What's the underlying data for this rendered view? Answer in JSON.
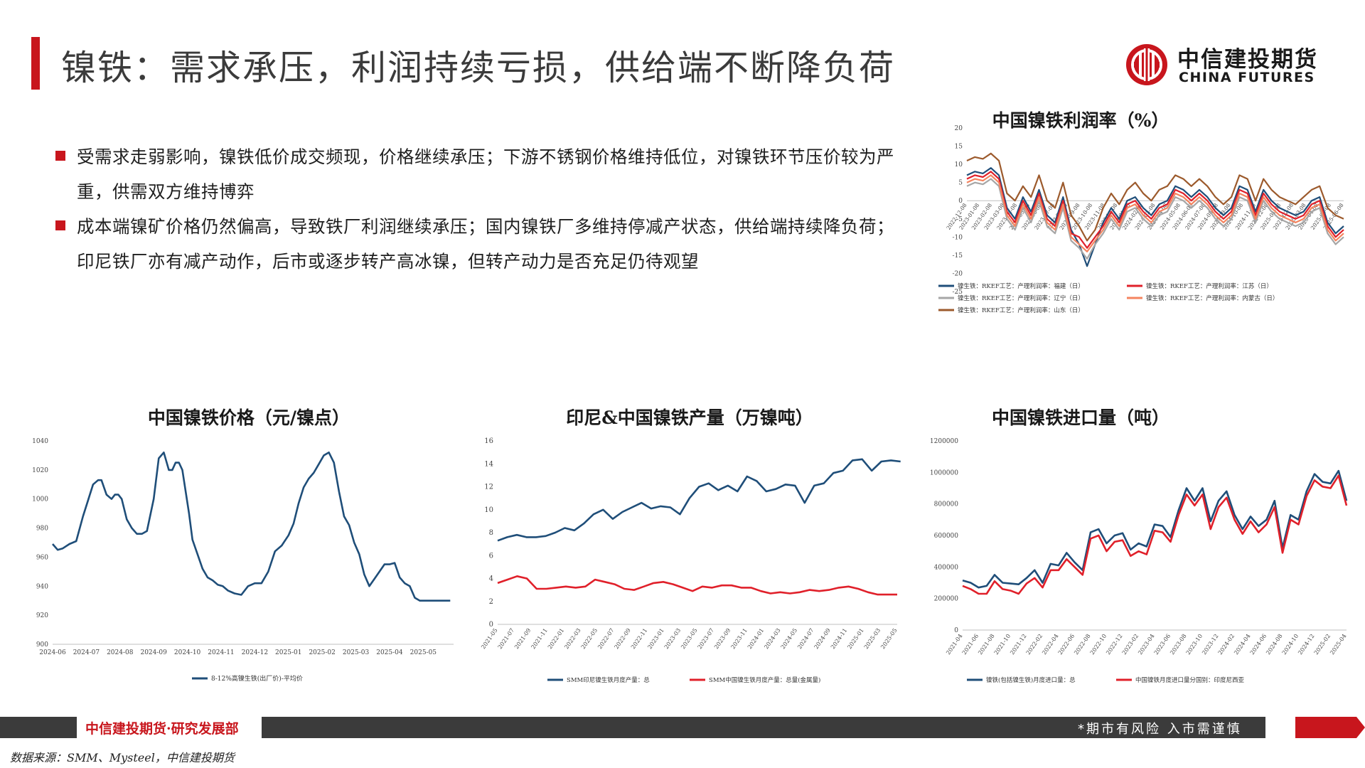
{
  "header": {
    "title": "镍铁：需求承压，利润持续亏损，供给端不断降负荷",
    "logo_cn": "中信建投期货",
    "logo_en": "CHINA FUTURES"
  },
  "bullets": [
    "受需求走弱影响，镍铁低价成交频现，价格继续承压；下游不锈钢价格维持低位，对镍铁环节压价较为严重，供需双方维持博弈",
    "成本端镍矿价格仍然偏高，导致铁厂利润继续承压；国内镍铁厂多维持停减产状态，供给端持续降负荷；印尼铁厂亦有减产动作，后市或逐步转产高冰镍，但转产动力是否充足仍待观望"
  ],
  "footer": {
    "org": "中信建投期货·研究发展部",
    "risk": "*期市有风险  入市需谨慎",
    "source": "数据来源：SMM、Mysteel，中信建投期货"
  },
  "colors": {
    "brand_red": "#c8161d",
    "navy": "#1f4e79",
    "red": "#e0202a",
    "gray": "#a6a6a6",
    "salmon": "#f4845f",
    "brown": "#9c5a2c",
    "dark": "#3b3b3b"
  },
  "chart_data": [
    {
      "id": "profit",
      "type": "line",
      "title": "中国镍铁利润率（%）",
      "ylim": [
        -25,
        20
      ],
      "yticks": [
        20,
        15,
        10,
        5,
        0,
        -5,
        -10,
        -15,
        -20,
        -25
      ],
      "x_ticks": [
        "2022-12-08",
        "2023-01-08",
        "2023-02-08",
        "2023-03-08",
        "2023-04-08",
        "2023-05-08",
        "2023-06-08",
        "2023-07-08",
        "2023-08-08",
        "2023-09-08",
        "2023-10-08",
        "2023-11-08",
        "2023-12-08",
        "2024-01-08",
        "2024-02-08",
        "2024-03-08",
        "2024-04-08",
        "2024-05-08",
        "2024-06-08",
        "2024-07-08",
        "2024-08-08",
        "2024-09-08",
        "2024-10-08",
        "2024-11-08",
        "2024-12-08",
        "2025-01-08",
        "2025-02-08",
        "2025-03-08",
        "2025-04-08",
        "2025-05-08",
        "2025-06-08"
      ],
      "series": [
        {
          "name": "镍生铁：RKEF工艺：产理利润率：福建（日）",
          "color": "#1f4e79",
          "values": [
            7,
            8,
            7.5,
            9,
            7,
            -2,
            -5,
            1,
            -3,
            3,
            -4,
            -6,
            1,
            -8,
            -12,
            -18,
            -12,
            -6,
            -2,
            -5,
            0,
            1,
            -2,
            -4,
            -1,
            0,
            4,
            3,
            1,
            3,
            1,
            -2,
            -4,
            -2,
            4,
            3,
            -3,
            3,
            0,
            -2,
            -3,
            -4,
            -3,
            0,
            1,
            -6,
            -9,
            -7
          ]
        },
        {
          "name": "镍生铁：RKEF工艺：产理利润率：江苏（日）",
          "color": "#e0202a",
          "values": [
            6,
            7,
            6.5,
            8,
            6,
            -3,
            -6,
            0,
            -4,
            2,
            -5,
            -7,
            0,
            -9,
            -10,
            -13,
            -10,
            -7,
            -3,
            -6,
            -1,
            0,
            -3,
            -5,
            -2,
            -1,
            3,
            2,
            0,
            2,
            0,
            -3,
            -5,
            -3,
            3,
            2,
            -4,
            2,
            -1,
            -3,
            -4,
            -5,
            -4,
            -1,
            0,
            -7,
            -10,
            -8
          ]
        },
        {
          "name": "镍生铁：RKEF工艺：产理利润率：辽宁（日）",
          "color": "#a6a6a6",
          "values": [
            4,
            5,
            4.5,
            6,
            4,
            -5,
            -8,
            -2,
            -6,
            0,
            -7,
            -9,
            -2,
            -11,
            -13,
            -16,
            -12,
            -9,
            -5,
            -8,
            -3,
            -2,
            -5,
            -7,
            -4,
            -3,
            1,
            0,
            -2,
            0,
            -2,
            -5,
            -7,
            -5,
            1,
            0,
            -6,
            0,
            -3,
            -5,
            -6,
            -7,
            -6,
            -3,
            -2,
            -9,
            -12,
            -10
          ]
        },
        {
          "name": "镍生铁：RKEF工艺：产理利润率：内蒙古（日）",
          "color": "#f4845f",
          "values": [
            5,
            6,
            5.5,
            7,
            5,
            -4,
            -7,
            -1,
            -5,
            1,
            -6,
            -8,
            -1,
            -10,
            -12,
            -14,
            -11,
            -8,
            -4,
            -7,
            -2,
            -1,
            -4,
            -6,
            -3,
            -2,
            2,
            1,
            -1,
            1,
            -1,
            -4,
            -6,
            -4,
            2,
            1,
            -5,
            1,
            -2,
            -4,
            -5,
            -6,
            -5,
            -2,
            -1,
            -8,
            -11,
            -9
          ]
        },
        {
          "name": "镍生铁：RKEF工艺：产理利润率：山东（日）",
          "color": "#9c5a2c",
          "values": [
            11,
            12,
            11.5,
            13,
            11,
            2,
            0,
            4,
            1,
            7,
            0,
            -2,
            5,
            -4,
            -7,
            -11,
            -8,
            -2,
            2,
            -1,
            3,
            5,
            2,
            0,
            3,
            4,
            7,
            6,
            4,
            6,
            4,
            1,
            -1,
            1,
            7,
            6,
            0,
            6,
            3,
            1,
            0,
            -1,
            1,
            3,
            4,
            -2,
            -4,
            -5
          ]
        }
      ]
    },
    {
      "id": "price",
      "type": "line",
      "title": "中国镍铁价格（元/镍点）",
      "ylim": [
        900,
        1040
      ],
      "yticks": [
        1040,
        1020,
        1000,
        980,
        960,
        940,
        920,
        900
      ],
      "x_ticks": [
        "2024-06",
        "2024-07",
        "2024-08",
        "2024-09",
        "2024-10",
        "2024-11",
        "2024-12",
        "2025-01",
        "2025-02",
        "2025-03",
        "2025-04",
        "2025-05"
      ],
      "x_range": [
        0,
        11.9
      ],
      "series": [
        {
          "name": "8-12%高镍生铁(出厂价)-平均价",
          "color": "#1f4e79",
          "x": [
            0,
            0.15,
            0.3,
            0.5,
            0.7,
            0.9,
            1.05,
            1.2,
            1.35,
            1.45,
            1.6,
            1.75,
            1.85,
            1.95,
            2.05,
            2.2,
            2.35,
            2.5,
            2.65,
            2.8,
            3.0,
            3.15,
            3.3,
            3.45,
            3.55,
            3.65,
            3.75,
            3.85,
            3.95,
            4.05,
            4.15,
            4.3,
            4.45,
            4.6,
            4.75,
            4.9,
            5.05,
            5.2,
            5.4,
            5.6,
            5.8,
            6.0,
            6.2,
            6.4,
            6.6,
            6.8,
            7.0,
            7.15,
            7.3,
            7.45,
            7.6,
            7.75,
            7.9,
            8.05,
            8.2,
            8.35,
            8.5,
            8.65,
            8.8,
            8.95,
            9.1,
            9.25,
            9.4,
            9.55,
            9.7,
            9.85,
            10.0,
            10.15,
            10.3,
            10.45,
            10.6,
            10.75,
            10.9,
            11.05,
            11.2,
            11.35,
            11.5,
            11.65,
            11.8
          ],
          "values": [
            969,
            965,
            966,
            969,
            971,
            988,
            999,
            1010,
            1013,
            1013,
            1003,
            1000,
            1003,
            1003,
            1000,
            986,
            980,
            976,
            976,
            978,
            1000,
            1028,
            1032,
            1020,
            1020,
            1025,
            1025,
            1020,
            1005,
            990,
            972,
            962,
            952,
            946,
            944,
            941,
            940,
            937,
            935,
            934,
            940,
            942,
            942,
            950,
            964,
            968,
            975,
            983,
            997,
            1008,
            1014,
            1018,
            1024,
            1030,
            1032,
            1025,
            1005,
            988,
            982,
            970,
            962,
            948,
            940,
            945,
            950,
            955,
            955,
            956,
            946,
            942,
            940,
            932,
            930,
            930,
            930,
            930,
            930,
            930,
            930
          ]
        }
      ]
    },
    {
      "id": "output",
      "type": "line",
      "title": "印尼&中国镍铁产量（万镍吨）",
      "ylim": [
        0,
        16
      ],
      "yticks": [
        16,
        14,
        12,
        10,
        8,
        6,
        4,
        2,
        0
      ],
      "x_ticks": [
        "2021-05",
        "2021-07",
        "2021-09",
        "2021-11",
        "2022-01",
        "2022-03",
        "2022-05",
        "2022-07",
        "2022-09",
        "2022-11",
        "2023-01",
        "2023-03",
        "2023-05",
        "2023-07",
        "2023-09",
        "2023-11",
        "2024-01",
        "2024-03",
        "2024-05",
        "2024-07",
        "2024-09",
        "2024-11",
        "2025-01",
        "2025-03",
        "2025-05"
      ],
      "series": [
        {
          "name": "SMM印尼镍生铁月度产量：总",
          "color": "#1f4e79",
          "values": [
            7.3,
            7.6,
            7.8,
            7.6,
            7.6,
            7.7,
            8.0,
            8.4,
            8.2,
            8.8,
            9.6,
            10.0,
            9.2,
            9.8,
            10.2,
            10.6,
            10.1,
            10.3,
            10.2,
            9.6,
            11.0,
            12.0,
            12.3,
            11.7,
            12.1,
            11.6,
            12.9,
            12.5,
            11.6,
            11.8,
            12.2,
            12.1,
            10.6,
            12.1,
            12.3,
            13.2,
            13.4,
            14.3,
            14.4,
            13.4,
            14.2,
            14.3,
            14.2
          ],
          "x_max": 24.2
        },
        {
          "name": "SMM中国镍生铁月度产量：总量(金属量)",
          "color": "#e0202a",
          "values": [
            3.6,
            3.9,
            4.2,
            4.0,
            3.1,
            3.1,
            3.2,
            3.3,
            3.2,
            3.3,
            3.9,
            3.7,
            3.5,
            3.1,
            3.0,
            3.3,
            3.6,
            3.7,
            3.5,
            3.2,
            2.9,
            3.3,
            3.2,
            3.4,
            3.4,
            3.2,
            3.2,
            2.9,
            2.7,
            2.8,
            2.7,
            2.8,
            3.0,
            2.9,
            3.0,
            3.2,
            3.3,
            3.1,
            2.8,
            2.6,
            2.6,
            2.6
          ],
          "x_max": 24.0
        }
      ]
    },
    {
      "id": "imports",
      "type": "line",
      "title": "中国镍铁进口量（吨）",
      "ylim": [
        0,
        1200000
      ],
      "yticks": [
        1200000,
        1000000,
        800000,
        600000,
        400000,
        200000,
        0
      ],
      "x_ticks": [
        "2021-04",
        "2021-06",
        "2021-08",
        "2021-10",
        "2021-12",
        "2022-02",
        "2022-04",
        "2022-06",
        "2022-08",
        "2022-10",
        "2022-12",
        "2023-02",
        "2023-04",
        "2023-06",
        "2023-08",
        "2023-10",
        "2023-12",
        "2024-02",
        "2024-04",
        "2024-06",
        "2024-08",
        "2024-10",
        "2024-12",
        "2025-02",
        "2025-04"
      ],
      "series": [
        {
          "name": "镍铁(包括镍生铁)月度进口量：总",
          "color": "#1f4e79",
          "values": [
            315000,
            300000,
            270000,
            280000,
            350000,
            300000,
            295000,
            290000,
            330000,
            380000,
            300000,
            420000,
            410000,
            490000,
            430000,
            380000,
            620000,
            640000,
            550000,
            600000,
            615000,
            510000,
            550000,
            530000,
            670000,
            660000,
            590000,
            760000,
            900000,
            820000,
            900000,
            690000,
            820000,
            880000,
            730000,
            640000,
            720000,
            660000,
            700000,
            820000,
            520000,
            730000,
            700000,
            880000,
            990000,
            940000,
            930000,
            1010000,
            820000
          ]
        },
        {
          "name": "中国镍铁月度进口量分国别：印度尼西亚",
          "color": "#e0202a",
          "values": [
            280000,
            260000,
            230000,
            230000,
            310000,
            260000,
            250000,
            230000,
            295000,
            330000,
            270000,
            380000,
            380000,
            450000,
            400000,
            350000,
            580000,
            600000,
            500000,
            560000,
            570000,
            470000,
            500000,
            480000,
            630000,
            620000,
            560000,
            730000,
            860000,
            790000,
            860000,
            640000,
            780000,
            840000,
            700000,
            610000,
            690000,
            620000,
            670000,
            780000,
            490000,
            700000,
            670000,
            850000,
            950000,
            910000,
            900000,
            980000,
            790000
          ]
        }
      ]
    }
  ]
}
